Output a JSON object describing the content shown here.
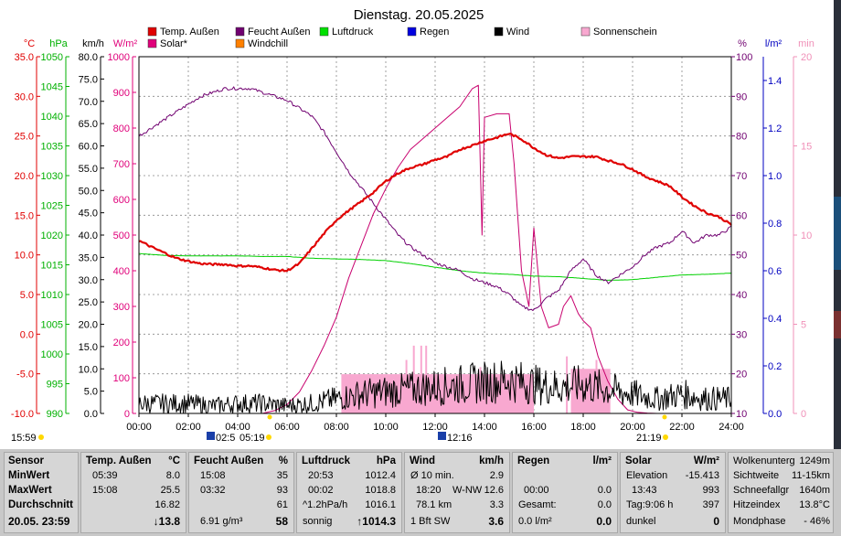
{
  "chart_data": {
    "type": "line",
    "title": "Dienstag. 20.05.2025",
    "legend": [
      {
        "name": "Temp. Außen",
        "color": "#e00000"
      },
      {
        "name": "Feucht Außen",
        "color": "#700070"
      },
      {
        "name": "Luftdruck",
        "color": "#00e000"
      },
      {
        "name": "Regen",
        "color": "#0000e0"
      },
      {
        "name": "Wind",
        "color": "#000000"
      },
      {
        "name": "Sonnenschein",
        "color": "#f8a8d0"
      },
      {
        "name": "Solar*",
        "color": "#e0007a"
      },
      {
        "name": "Windchill",
        "color": "#ff8000"
      }
    ],
    "x_ticks": [
      "00:00",
      "02:00",
      "04:00",
      "06:00",
      "08:00",
      "10:00",
      "12:00",
      "14:00",
      "16:00",
      "18:00",
      "20:00",
      "22:00",
      "24:00"
    ],
    "axes_left": [
      {
        "unit": "°C",
        "color": "#e00000",
        "min": -10,
        "max": 35,
        "ticks": [
          "35.0",
          "30.0",
          "25.0",
          "20.0",
          "15.0",
          "10.0",
          "5.0",
          "0.0",
          "-5.0",
          "-10.0"
        ]
      },
      {
        "unit": "hPa",
        "color": "#00b000",
        "min": 990,
        "max": 1050,
        "ticks": [
          "1050",
          "1045",
          "1040",
          "1035",
          "1030",
          "1025",
          "1020",
          "1015",
          "1010",
          "1005",
          "1000",
          "995",
          "990"
        ]
      },
      {
        "unit": "km/h",
        "color": "#000000",
        "min": 0,
        "max": 80,
        "ticks": [
          "80.0",
          "75.0",
          "70.0",
          "65.0",
          "60.0",
          "55.0",
          "50.0",
          "45.0",
          "40.0",
          "35.0",
          "30.0",
          "25.0",
          "20.0",
          "15.0",
          "10.0",
          "5.0",
          "0.0"
        ]
      },
      {
        "unit": "W/m²",
        "color": "#e0007a",
        "min": 0,
        "max": 1000,
        "ticks": [
          "1000",
          "900",
          "800",
          "700",
          "600",
          "500",
          "400",
          "300",
          "200",
          "100",
          "0"
        ]
      }
    ],
    "axes_right": [
      {
        "unit": "%",
        "color": "#700070",
        "min": 10,
        "max": 100,
        "ticks": [
          "100",
          "90",
          "80",
          "70",
          "60",
          "50",
          "40",
          "30",
          "20",
          "10"
        ]
      },
      {
        "unit": "l/m²",
        "color": "#0000c0",
        "min": 0,
        "max": 1.5,
        "ticks": [
          "1.4",
          "1.2",
          "1.0",
          "0.8",
          "0.6",
          "0.4",
          "0.2",
          "0.0"
        ]
      },
      {
        "unit": "min",
        "color": "#f090b8",
        "min": 0,
        "max": 20,
        "ticks": [
          "20",
          "15",
          "10",
          "5",
          "0"
        ]
      }
    ],
    "series": [
      {
        "name": "Temp. Außen",
        "unit": "°C",
        "x": [
          0,
          0.5,
          1,
          1.5,
          2,
          2.5,
          3,
          3.5,
          4,
          4.5,
          5,
          5.5,
          6,
          6.5,
          7,
          7.5,
          8,
          8.5,
          9,
          9.5,
          10,
          10.5,
          11,
          11.5,
          12,
          12.5,
          13,
          13.5,
          14,
          14.5,
          15,
          15.5,
          16,
          16.5,
          17,
          17.5,
          18,
          18.5,
          19,
          19.5,
          20,
          20.5,
          21,
          21.5,
          22,
          22.5,
          23,
          23.5,
          24
        ],
        "y": [
          11.8,
          11.0,
          10.3,
          9.6,
          9.2,
          8.9,
          8.8,
          8.8,
          8.6,
          8.6,
          8.4,
          8.1,
          8.0,
          8.9,
          10.8,
          12.7,
          14.4,
          15.6,
          16.7,
          17.9,
          19.3,
          20.3,
          21.0,
          21.4,
          22.0,
          22.4,
          23.3,
          23.8,
          24.4,
          24.8,
          25.3,
          24.6,
          23.5,
          22.6,
          22.2,
          22.4,
          22.4,
          22.4,
          21.9,
          21.5,
          20.8,
          19.9,
          19.3,
          18.7,
          17.3,
          16.2,
          15.3,
          14.8,
          13.8
        ]
      },
      {
        "name": "Feucht Außen",
        "unit": "%",
        "x": [
          0,
          0.5,
          1,
          1.5,
          2,
          2.5,
          3,
          3.5,
          4,
          4.5,
          5,
          5.5,
          6,
          6.5,
          7,
          7.5,
          8,
          8.5,
          9,
          9.5,
          10,
          10.5,
          11,
          11.5,
          12,
          12.5,
          13,
          13.5,
          14,
          14.5,
          15,
          15.5,
          16,
          16.5,
          17,
          17.5,
          18,
          18.5,
          19,
          19.5,
          20,
          20.5,
          21,
          21.5,
          22,
          22.5,
          23,
          23.5,
          24
        ],
        "y": [
          80,
          82,
          84,
          86,
          88,
          90,
          91,
          92,
          92,
          92,
          91,
          90,
          89,
          87,
          85,
          81,
          76,
          71,
          67,
          63,
          59,
          55,
          52,
          50,
          48,
          47,
          46,
          44,
          43,
          42,
          40,
          37,
          36,
          39,
          41,
          46,
          49,
          45,
          43,
          45,
          47,
          50,
          52,
          53,
          56,
          53,
          55,
          55,
          57
        ]
      },
      {
        "name": "Luftdruck",
        "unit": "hPa",
        "x": [
          0,
          1,
          2,
          3,
          4,
          5,
          6,
          7,
          8,
          9,
          10,
          11,
          12,
          13,
          14,
          15,
          16,
          17,
          18,
          19,
          20,
          21,
          22,
          23,
          24
        ],
        "y": [
          1016.9,
          1016.6,
          1016.5,
          1016.5,
          1016.5,
          1016.4,
          1016.4,
          1016.1,
          1016.0,
          1015.9,
          1015.7,
          1015.2,
          1014.6,
          1014.0,
          1013.6,
          1013.4,
          1013.1,
          1013.0,
          1012.7,
          1012.4,
          1012.5,
          1012.9,
          1013.3,
          1013.4,
          1013.6
        ]
      },
      {
        "name": "Solar*",
        "unit": "W/m²",
        "x": [
          0,
          5,
          5.5,
          6,
          6.5,
          7,
          7.5,
          8,
          8.5,
          9,
          9.5,
          10,
          10.5,
          11,
          11.5,
          12,
          12.5,
          13,
          13.5,
          13.75,
          13.9,
          14,
          14.5,
          15,
          15.2,
          15.5,
          15.8,
          16,
          16.3,
          16.6,
          17,
          17.2,
          17.5,
          17.8,
          18,
          18.3,
          18.6,
          19,
          19.4,
          19.8,
          20.2,
          20.6,
          21,
          21.2,
          24
        ],
        "y": [
          0,
          0,
          8,
          25,
          60,
          120,
          190,
          270,
          380,
          470,
          560,
          630,
          690,
          740,
          770,
          800,
          830,
          860,
          910,
          920,
          500,
          830,
          840,
          840,
          700,
          400,
          300,
          520,
          300,
          240,
          250,
          300,
          330,
          280,
          260,
          240,
          160,
          90,
          40,
          10,
          3,
          1,
          0,
          0,
          0
        ]
      },
      {
        "name": "Wind",
        "unit": "km/h",
        "x": [
          0,
          1,
          2,
          3,
          4,
          5,
          6,
          7,
          8,
          9,
          10,
          11,
          12,
          13,
          14,
          15,
          16,
          17,
          18,
          19,
          20,
          21,
          22,
          23,
          24
        ],
        "y": [
          2,
          2,
          2,
          1.5,
          2,
          2,
          1.5,
          2,
          3,
          4,
          4.5,
          5,
          5.5,
          6,
          6.5,
          7,
          6,
          5.5,
          6,
          5,
          4,
          3,
          4,
          3,
          3
        ]
      },
      {
        "name": "Sonnenschein",
        "unit": "min",
        "x": [
          8.2,
          16.0,
          17.5,
          19.1
        ],
        "y": [
          2.2,
          2.2,
          2.5,
          2.5
        ]
      }
    ],
    "grid": true,
    "time_labels": {
      "start": "15:59",
      "sunrise": "02:5",
      "sunset_label": "05:19",
      "noon": "12:16",
      "evening": "21:19"
    }
  },
  "stats": {
    "sensor": {
      "title": "Sensor",
      "min": "MinWert",
      "max": "MaxWert",
      "avg": "Durchschnitt",
      "now": "20.05. 23:59"
    },
    "temp": {
      "title": "Temp. Außen",
      "unit": "°C",
      "min_time": "05:39",
      "min_val": "8.0",
      "max_time": "15:08",
      "max_val": "25.5",
      "avg_val": "16.82",
      "current": "↓13.8"
    },
    "humid": {
      "title": "Feucht Außen",
      "unit": "%",
      "min_time": "15:08",
      "min_val": "35",
      "max_time": "03:32",
      "max_val": "93",
      "avg_val": "61",
      "extra": "6.91 g/m³",
      "current": "58"
    },
    "pressure": {
      "title": "Luftdruck",
      "unit": "hPa",
      "min_time": "20:53",
      "min_val": "1012.4",
      "max_time": "00:02",
      "max_val": "1018.8",
      "trend": "^1.2hPa/h",
      "avg_val": "1016.1",
      "state": "sonnig",
      "current": "↑1014.3"
    },
    "wind": {
      "title": "Wind",
      "unit": "km/h",
      "r1_label": "Ø 10 min.",
      "r1_val": "2.9",
      "r2_time": "18:20",
      "r2_dir": "W-NW",
      "r2_val": "12.6",
      "r3_label": "78.1 km",
      "r3_val": "3.3",
      "r4_label": "1 Bft SW",
      "current": "3.6"
    },
    "rain": {
      "title": "Regen",
      "unit": "l/m²",
      "r2_time": "00:00",
      "r2_val": "0.0",
      "r3_label": "Gesamt:",
      "r3_val": "0.0",
      "r4_label": "0.0 l/m²",
      "current": "0.0"
    },
    "solar": {
      "title": "Solar",
      "unit": "W/m²",
      "r1_label": "Elevation",
      "r1_val": "-15.413",
      "r2_time": "13:43",
      "r2_val": "993",
      "r3_label": "Tag:9:06 h",
      "r3_val": "397",
      "r4_label": "dunkel",
      "current": "0"
    },
    "extra": {
      "r0_label": "Wolkenunterg",
      "r0_val": "1249m",
      "r1_label": "Sichtweite",
      "r1_val": "11-15km",
      "r2_label": "Schneefallgr",
      "r2_val": "1640m",
      "r3_label": "Hitzeindex",
      "r3_val": "13.8°C",
      "r4_label": "Mondphase",
      "r4_val": "- 46%"
    }
  }
}
